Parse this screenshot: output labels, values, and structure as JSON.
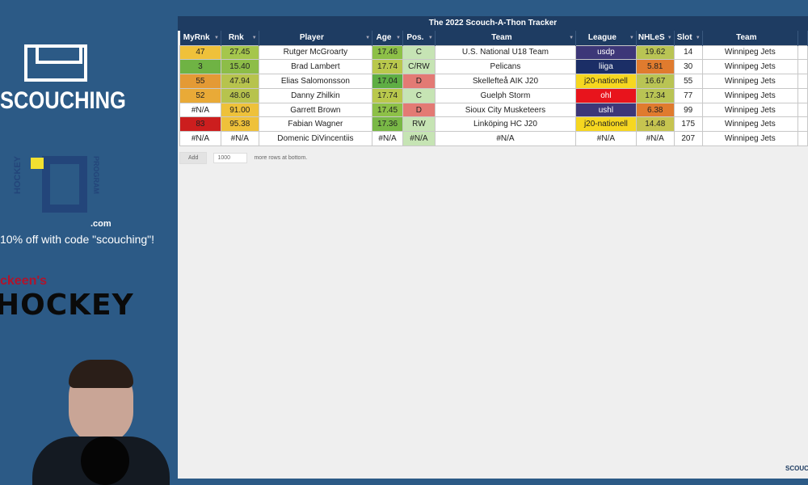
{
  "sidebar": {
    "brand": "SCOUCHING",
    "iq_left": "HOCKEY",
    "iq_right": "PROGRAM",
    "iq_com": ".com",
    "promo": "10% off with code \"scouching\"!",
    "sponsor_top": "ckeen's",
    "sponsor_main": "HOCKEY"
  },
  "sheet": {
    "title": "The 2022 Scouch-A-Thon Tracker",
    "columns": [
      "MyRnk",
      "Rnk",
      "Player",
      "Age",
      "Pos.",
      "Team",
      "League",
      "NHLeS",
      "Slot",
      "Team"
    ],
    "rows": [
      {
        "cells": [
          "47",
          "27.45",
          "Rutger McGroarty",
          "17.46",
          "C",
          "U.S. National U18 Team",
          "usdp",
          "19.62",
          "14",
          "Winnipeg Jets"
        ],
        "colors": [
          "#efc13a",
          "#a5c64c",
          "#fff",
          "#8dc047",
          "#c6e4b4",
          "#fff",
          "#3d3778",
          "#b9c454",
          "#fff",
          "#fff"
        ]
      },
      {
        "cells": [
          "3",
          "15.40",
          "Brad Lambert",
          "17.74",
          "C/RW",
          "Pelicans",
          "liiga",
          "5.81",
          "30",
          "Winnipeg Jets"
        ],
        "colors": [
          "#6fb344",
          "#8dbd48",
          "#fff",
          "#b9c84c",
          "#c6e4b4",
          "#fff",
          "#1b2e66",
          "#e07b2e",
          "#fff",
          "#fff"
        ]
      },
      {
        "cells": [
          "55",
          "47.94",
          "Elias Salomonsson",
          "17.04",
          "D",
          "Skellefteå AIK J20",
          "j20-nationell",
          "16.67",
          "55",
          "Winnipeg Jets"
        ],
        "colors": [
          "#e49a35",
          "#b7c34d",
          "#fff",
          "#5eae44",
          "#e37a74",
          "#fff",
          "#f6d720",
          "#b9c454",
          "#fff",
          "#fff"
        ]
      },
      {
        "cells": [
          "52",
          "48.06",
          "Danny Zhilkin",
          "17.74",
          "C",
          "Guelph Storm",
          "ohl",
          "17.34",
          "77",
          "Winnipeg Jets"
        ],
        "colors": [
          "#e9aa37",
          "#b7c34d",
          "#fff",
          "#b9c84c",
          "#c6e4b4",
          "#fff",
          "#e8141c",
          "#b9c454",
          "#fff",
          "#fff"
        ]
      },
      {
        "cells": [
          "#N/A",
          "91.00",
          "Garrett Brown",
          "17.45",
          "D",
          "Sioux City Musketeers",
          "ushl",
          "6.38",
          "99",
          "Winnipeg Jets"
        ],
        "colors": [
          "#fff",
          "#eec13a",
          "#fff",
          "#8dc047",
          "#e37a74",
          "#fff",
          "#3d3778",
          "#e07b2e",
          "#fff",
          "#fff"
        ]
      },
      {
        "cells": [
          "83",
          "95.38",
          "Fabian Wagner",
          "17.36",
          "RW",
          "Linköping HC J20",
          "j20-nationell",
          "14.48",
          "175",
          "Winnipeg Jets"
        ],
        "colors": [
          "#cc1e1e",
          "#efc13a",
          "#fff",
          "#79b846",
          "#c6e4b4",
          "#fff",
          "#f6d720",
          "#c6c450",
          "#fff",
          "#fff"
        ]
      },
      {
        "cells": [
          "#N/A",
          "#N/A",
          "Domenic DiVincentiis",
          "#N/A",
          "#N/A",
          "#N/A",
          "#N/A",
          "#N/A",
          "207",
          "Winnipeg Jets"
        ],
        "colors": [
          "#fff",
          "#fff",
          "#fff",
          "#fff",
          "#c6e4b4",
          "#fff",
          "#fff",
          "#fff",
          "#fff",
          "#fff"
        ]
      }
    ],
    "add_label": "Add",
    "add_value": "1000",
    "add_suffix": "more rows at bottom."
  },
  "watermark": "SCOUC"
}
